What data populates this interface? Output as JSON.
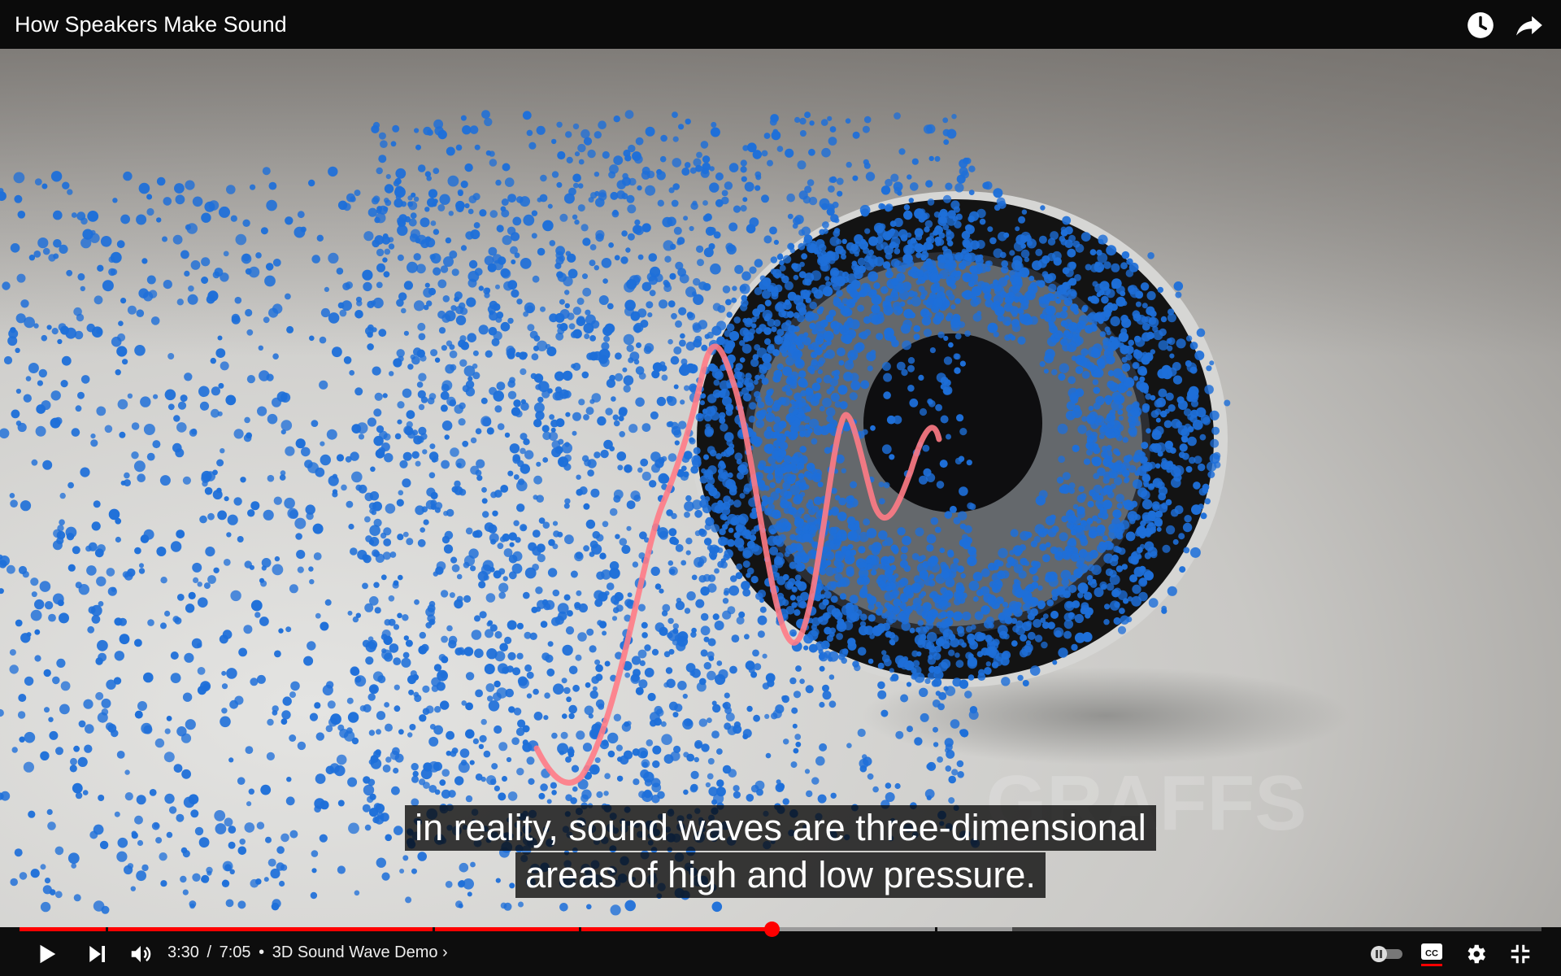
{
  "header": {
    "title": "How Speakers Make Sound",
    "icons": [
      "watch-later-icon",
      "share-icon"
    ]
  },
  "captions": {
    "line1": "in reality, sound waves are three-dimensional",
    "line2": "areas of high and low pressure."
  },
  "watermark": "GRAFFS",
  "player": {
    "current_time": "3:30",
    "duration": "7:05",
    "separator": "•",
    "chapter": "3D Sound Wave Demo ›",
    "progress_fraction": 0.494,
    "buffered_fraction": 0.652,
    "accent_color": "#ff0000"
  }
}
